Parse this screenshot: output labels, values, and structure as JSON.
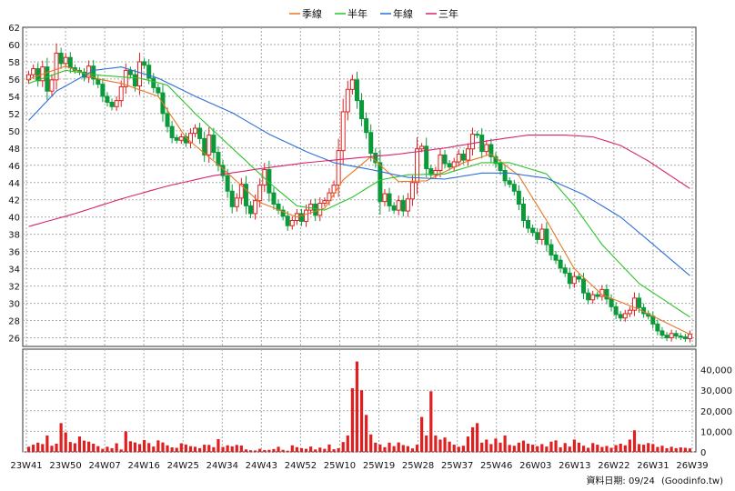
{
  "chart_data": [
    {
      "type": "candlestick",
      "title": "",
      "legend": {
        "placement": "top-center",
        "items": [
          {
            "name": "季線",
            "color": "#e87722"
          },
          {
            "name": "半年",
            "color": "#29c429"
          },
          {
            "name": "年線",
            "color": "#2b6fd6"
          },
          {
            "name": "三年",
            "color": "#d6246e"
          }
        ]
      },
      "x_ticks": [
        "23W41",
        "23W50",
        "24W07",
        "24W16",
        "24W25",
        "24W34",
        "24W43",
        "24W52",
        "25W10",
        "25W19",
        "25W28",
        "25W37",
        "25W46",
        "26W03",
        "26W13",
        "26W22",
        "26W31",
        "26W39"
      ],
      "y_ticks": [
        "62",
        "60",
        "58",
        "56",
        "54",
        "52",
        "50",
        "48",
        "46",
        "44",
        "42",
        "40",
        "38",
        "36",
        "34",
        "32",
        "30",
        "28",
        "26"
      ],
      "ylim": [
        25,
        62
      ],
      "grid": true,
      "up_color": "#e02020",
      "down_color": "#0a9a3a",
      "weekly_close": [
        56.5,
        57.2,
        55.8,
        57.4,
        54.6,
        55.9,
        59.0,
        57.8,
        58.5,
        57.3,
        57.0,
        56.8,
        56.2,
        57.5,
        56.0,
        55.4,
        54.0,
        53.3,
        52.8,
        53.5,
        55.1,
        57.0,
        56.5,
        55.2,
        58.0,
        57.6,
        56.1,
        55.0,
        54.4,
        52.0,
        50.5,
        49.2,
        48.9,
        49.3,
        48.6,
        49.7,
        50.3,
        49.1,
        47.2,
        49.5,
        47.5,
        46.0,
        44.8,
        43.0,
        41.2,
        42.2,
        43.8,
        41.3,
        40.4,
        41.9,
        43.7,
        45.5,
        42.8,
        41.5,
        40.8,
        40.1,
        39.0,
        39.6,
        40.4,
        39.5,
        40.8,
        41.5,
        40.2,
        41.6,
        41.9,
        42.8,
        43.7,
        47.7,
        52.2,
        54.8,
        55.9,
        53.5,
        51.4,
        49.8,
        47.4,
        46.3,
        41.8,
        42.7,
        41.3,
        40.8,
        41.9,
        40.7,
        42.1,
        44.0,
        47.9,
        48.2,
        45.6,
        44.9,
        45.4,
        47.2,
        46.2,
        45.8,
        46.4,
        47.3,
        46.6,
        47.9,
        49.6,
        49.5,
        47.6,
        48.4,
        47.0,
        46.2,
        45.4,
        44.2,
        43.8,
        43.0,
        41.5,
        39.6,
        38.7,
        38.2,
        37.4,
        38.6,
        36.8,
        35.6,
        35.0,
        34.1,
        33.5,
        32.3,
        33.1,
        32.8,
        31.2,
        30.4,
        31.0,
        30.8,
        31.6,
        30.5,
        29.6,
        28.7,
        28.3,
        28.8,
        29.2,
        30.6,
        29.5,
        28.8,
        28.5,
        27.6,
        26.8,
        26.3,
        26.0,
        26.5,
        26.2,
        26.1,
        25.9,
        26.4
      ],
      "series": [
        {
          "name": "季線",
          "anchors": [
            [
              0,
              56.0
            ],
            [
              8,
              57.5
            ],
            [
              15,
              56.0
            ],
            [
              20,
              55.5
            ],
            [
              28,
              54.0
            ],
            [
              34,
              49.2
            ],
            [
              42,
              45.6
            ],
            [
              50,
              41.7
            ],
            [
              58,
              40.0
            ],
            [
              64,
              41.0
            ],
            [
              68,
              44.3
            ],
            [
              74,
              47.0
            ],
            [
              80,
              44.1
            ],
            [
              86,
              44.2
            ],
            [
              94,
              46.3
            ],
            [
              100,
              47.3
            ],
            [
              106,
              44.8
            ],
            [
              112,
              39.6
            ],
            [
              118,
              34.0
            ],
            [
              124,
              31.0
            ],
            [
              132,
              29.3
            ],
            [
              143,
              26.4
            ]
          ]
        },
        {
          "name": "半年",
          "anchors": [
            [
              0,
              55.5
            ],
            [
              8,
              57.0
            ],
            [
              16,
              56.4
            ],
            [
              24,
              56.1
            ],
            [
              30,
              55.3
            ],
            [
              36,
              52.0
            ],
            [
              44,
              48.0
            ],
            [
              52,
              44.0
            ],
            [
              58,
              41.3
            ],
            [
              64,
              40.8
            ],
            [
              70,
              42.3
            ],
            [
              76,
              44.3
            ],
            [
              82,
              44.9
            ],
            [
              90,
              45.0
            ],
            [
              98,
              46.3
            ],
            [
              104,
              46.3
            ],
            [
              112,
              45.0
            ],
            [
              118,
              41.3
            ],
            [
              124,
              36.8
            ],
            [
              132,
              32.3
            ],
            [
              143,
              28.4
            ]
          ]
        },
        {
          "name": "年線",
          "anchors": [
            [
              0,
              51.2
            ],
            [
              6,
              54.6
            ],
            [
              14,
              57.0
            ],
            [
              20,
              57.4
            ],
            [
              28,
              56.1
            ],
            [
              36,
              54.0
            ],
            [
              44,
              52.1
            ],
            [
              52,
              49.6
            ],
            [
              60,
              47.6
            ],
            [
              66,
              46.3
            ],
            [
              74,
              45.5
            ],
            [
              82,
              44.6
            ],
            [
              90,
              44.4
            ],
            [
              98,
              45.1
            ],
            [
              104,
              45.1
            ],
            [
              112,
              44.5
            ],
            [
              120,
              42.6
            ],
            [
              128,
              40.0
            ],
            [
              134,
              37.3
            ],
            [
              143,
              33.2
            ]
          ]
        },
        {
          "name": "三年",
          "anchors": [
            [
              0,
              38.9
            ],
            [
              10,
              40.4
            ],
            [
              20,
              42.1
            ],
            [
              30,
              43.6
            ],
            [
              40,
              44.8
            ],
            [
              50,
              45.6
            ],
            [
              60,
              46.3
            ],
            [
              70,
              46.8
            ],
            [
              80,
              47.3
            ],
            [
              90,
              48.0
            ],
            [
              100,
              48.9
            ],
            [
              108,
              49.5
            ],
            [
              116,
              49.5
            ],
            [
              122,
              49.3
            ],
            [
              128,
              48.3
            ],
            [
              134,
              46.5
            ],
            [
              143,
              43.3
            ]
          ]
        }
      ]
    },
    {
      "type": "bar",
      "title": "",
      "ylim": [
        0,
        50000
      ],
      "y_ticks": [
        "40,000",
        "30,000",
        "20,000",
        "10,000",
        "0"
      ],
      "bar_color": "#e02020",
      "values": [
        2500,
        3500,
        4500,
        3800,
        8000,
        3000,
        4000,
        14000,
        9500,
        4800,
        4200,
        7500,
        5500,
        5000,
        4000,
        2800,
        1500,
        2500,
        1800,
        4200,
        1200,
        10000,
        5200,
        4600,
        3800,
        5800,
        4300,
        2600,
        5600,
        4600,
        3200,
        2200,
        2000,
        4200,
        3600,
        2800,
        2500,
        1800,
        3500,
        3400,
        2300,
        6200,
        2400,
        3200,
        2700,
        3400,
        3100,
        1200,
        800,
        700,
        1500,
        900,
        1000,
        1400,
        2500,
        1000,
        600,
        3200,
        2300,
        1800,
        1500,
        2600,
        1200,
        2100,
        1500,
        3600,
        1300,
        1800,
        4800,
        8000,
        31000,
        44000,
        30000,
        18000,
        8500,
        4500,
        3600,
        2300,
        4500,
        2800,
        4600,
        3300,
        2800,
        1700,
        3500,
        17000,
        8000,
        29500,
        8000,
        6000,
        7000,
        5000,
        3500,
        2500,
        3000,
        7500,
        12000,
        14000,
        4500,
        6000,
        3800,
        6500,
        4500,
        8000,
        3400,
        3000,
        4500,
        5500,
        4000,
        3500,
        2800,
        3800,
        2600,
        5000,
        5600,
        2200,
        4300,
        2600,
        6000,
        4500,
        3000,
        2000,
        4300,
        3500,
        2400,
        2900,
        2000,
        3300,
        4000,
        3200,
        6000,
        10500,
        3800,
        3500,
        4300,
        3800,
        2400,
        3000,
        1800,
        2500,
        1800,
        2200,
        2000,
        1700
      ]
    }
  ],
  "footer": {
    "label": "資料日期: 09/24",
    "source": "(Goodinfo.tw)"
  }
}
